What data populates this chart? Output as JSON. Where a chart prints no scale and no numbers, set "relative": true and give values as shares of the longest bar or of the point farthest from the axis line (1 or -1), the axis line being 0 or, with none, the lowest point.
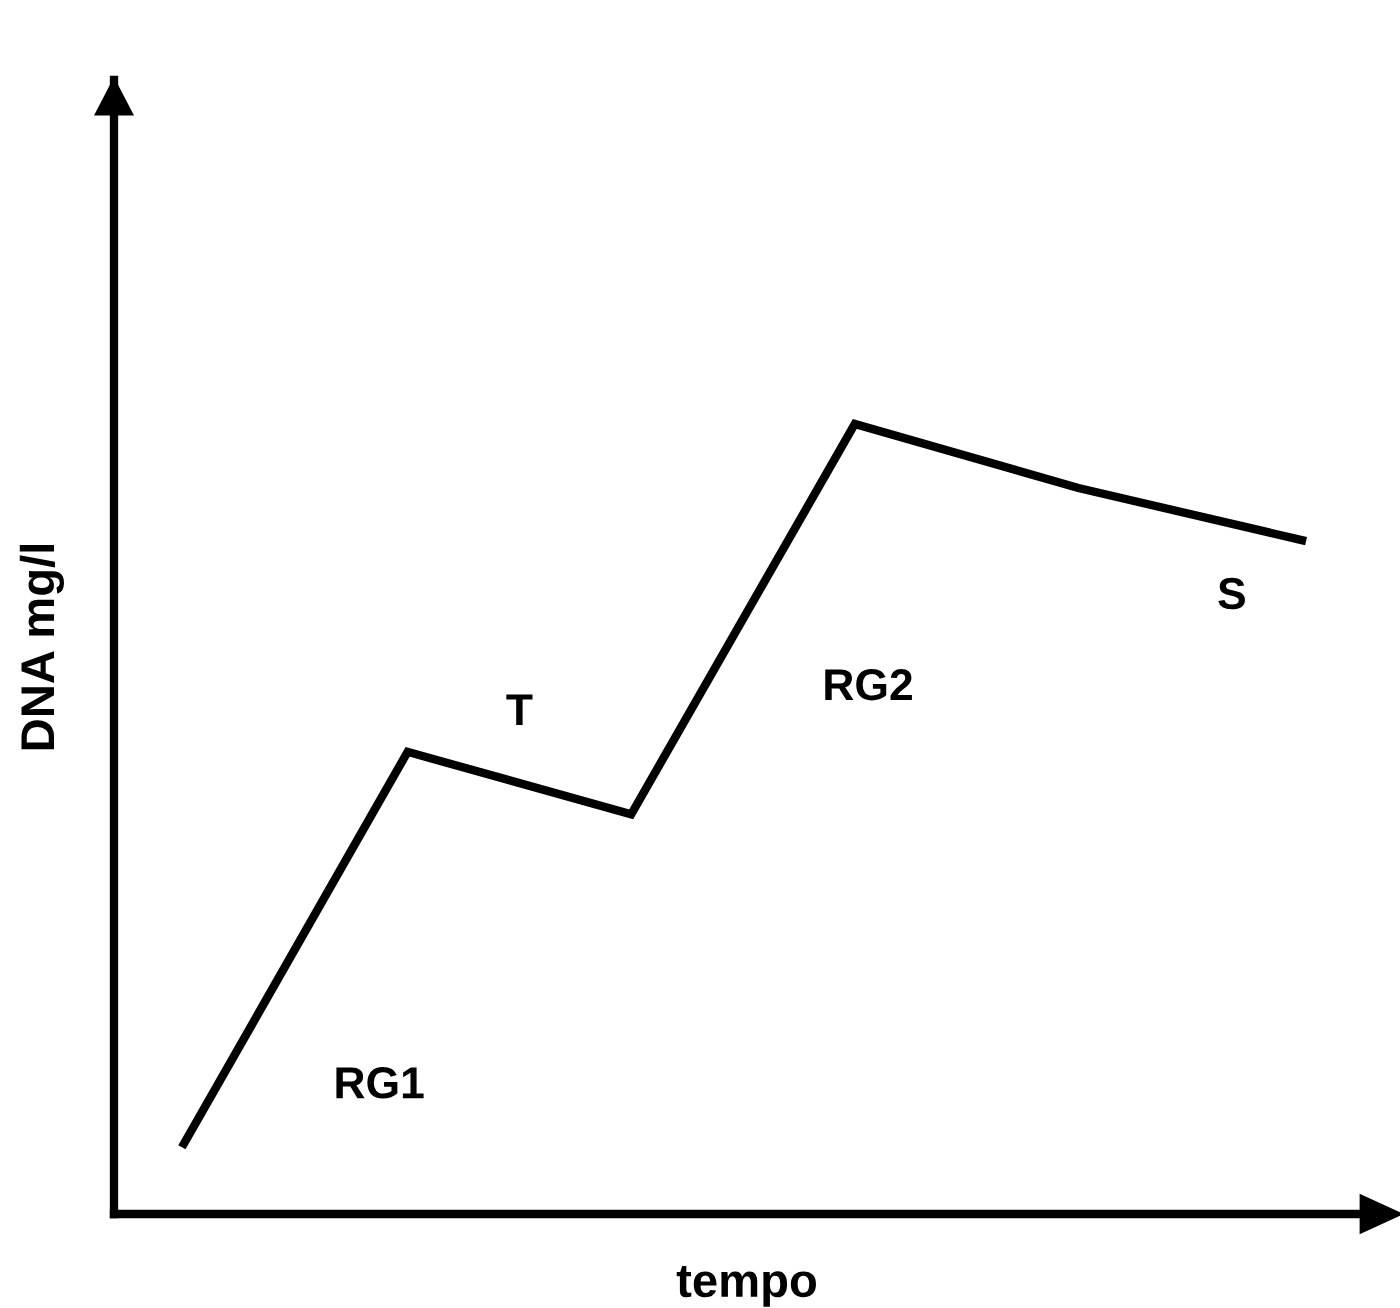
{
  "chart_data": {
    "type": "line",
    "relative": true,
    "xlabel": "tempo",
    "ylabel": "DNA mg/l",
    "categories": [
      null,
      null,
      null,
      null,
      null,
      null
    ],
    "series": [
      {
        "color": "#000000",
        "values": [
          0.089,
          0.585,
          0.506,
          1,
          0.919,
          0.853
        ]
      }
    ],
    "annotations": [
      "RG1",
      "T",
      "RG2",
      "S"
    ],
    "marker": "none",
    "line_style": "solid"
  }
}
